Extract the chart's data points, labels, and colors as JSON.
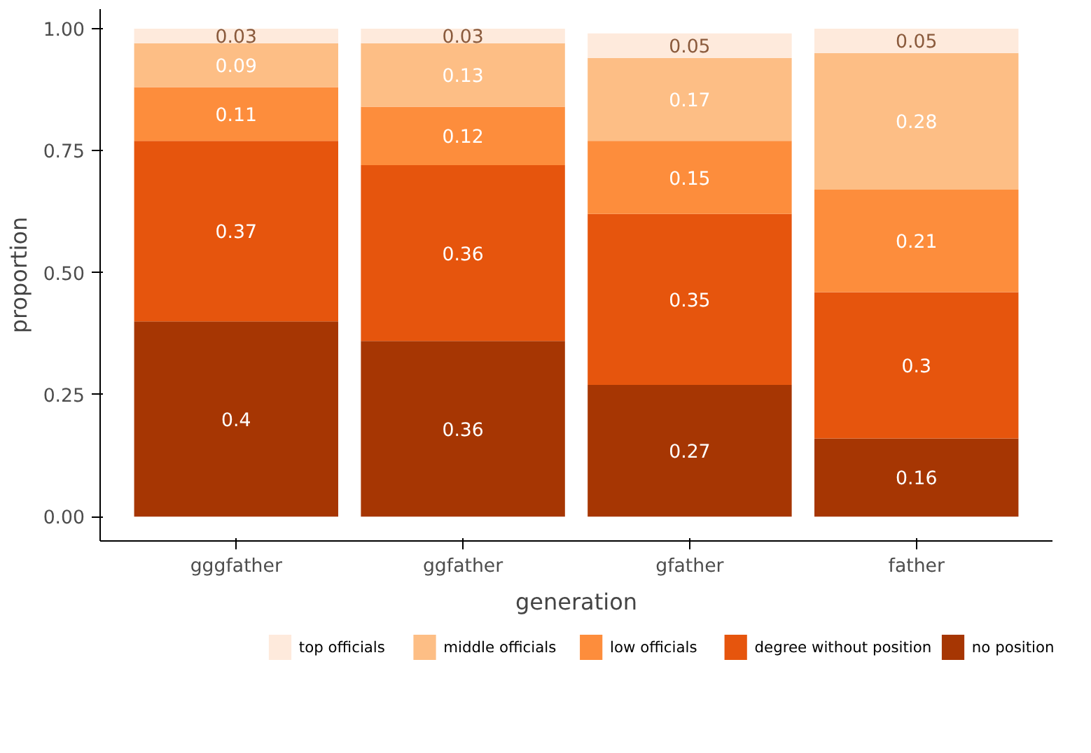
{
  "chart_data": {
    "type": "bar",
    "stacked": true,
    "xlabel": "generation",
    "ylabel": "proportion",
    "categories": [
      "gggfather",
      "ggfather",
      "gfather",
      "father"
    ],
    "ylim": [
      -0.05,
      1.04
    ],
    "yticks": [
      {
        "value": 0,
        "label": "0.00"
      },
      {
        "value": 0.25,
        "label": "0.25"
      },
      {
        "value": 0.5,
        "label": "0.50"
      },
      {
        "value": 0.75,
        "label": "0.75"
      },
      {
        "value": 1,
        "label": "1.00"
      }
    ],
    "series": [
      {
        "name": "no position",
        "color": "#a63603",
        "values": [
          0.4,
          0.36,
          0.27,
          0.16
        ]
      },
      {
        "name": "degree without position",
        "color": "#e6550d",
        "values": [
          0.37,
          0.36,
          0.35,
          0.3
        ]
      },
      {
        "name": "low officials",
        "color": "#fd8d3c",
        "values": [
          0.11,
          0.12,
          0.15,
          0.21
        ]
      },
      {
        "name": "middle officials",
        "color": "#fdbe85",
        "values": [
          0.09,
          0.13,
          0.17,
          0.28
        ]
      },
      {
        "name": "top officials",
        "color": "#feeadc",
        "values": [
          0.03,
          0.03,
          0.05,
          0.05
        ]
      }
    ],
    "data_labels": true,
    "grid": false,
    "legend": "bottom"
  }
}
